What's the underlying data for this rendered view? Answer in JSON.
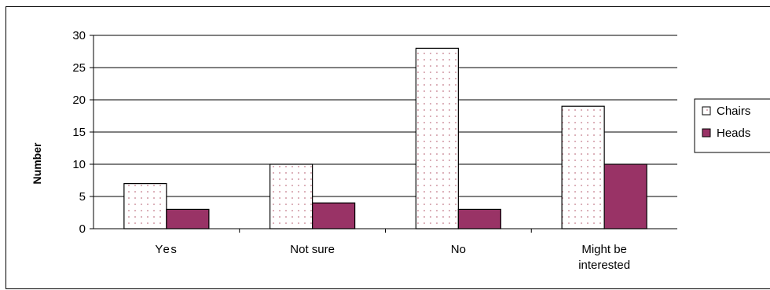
{
  "chart_data": {
    "type": "bar",
    "ylabel": "Number",
    "xlabel": "",
    "categories": [
      "Yes",
      "Not sure",
      "No",
      "Might be interested"
    ],
    "category_lines": [
      [
        "Yes"
      ],
      [
        "Not sure"
      ],
      [
        "No"
      ],
      [
        "Might be",
        "interested"
      ]
    ],
    "ylim": [
      0,
      30
    ],
    "yticks": [
      "0",
      "5",
      "10",
      "15",
      "20",
      "25",
      "30"
    ],
    "grid": true,
    "legend_position": "right",
    "series": [
      {
        "name": "Chairs",
        "values": [
          7,
          10,
          28,
          19
        ],
        "color": "#ffffff",
        "pattern": "dots",
        "dot_color": "#c47a8a"
      },
      {
        "name": "Heads",
        "values": [
          3,
          4,
          3,
          10
        ],
        "color": "#993366"
      }
    ]
  }
}
